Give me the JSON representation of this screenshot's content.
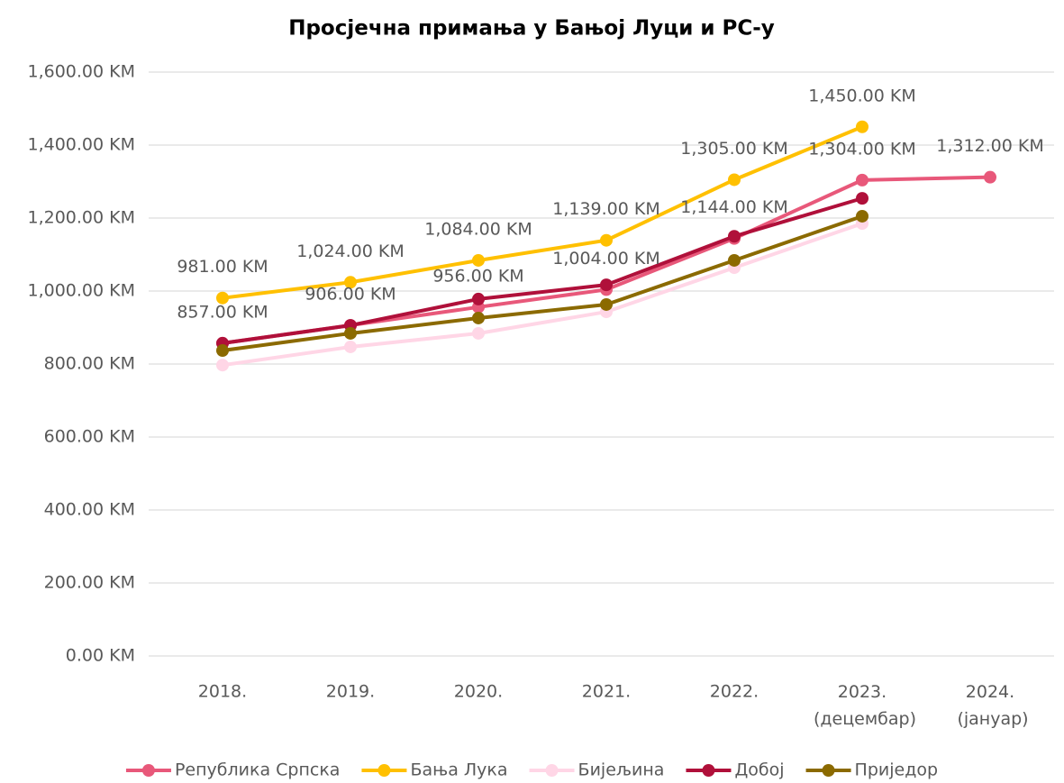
{
  "chart_data": {
    "type": "line",
    "title": "Просјечна примања у Бањој Луци и РС-у",
    "categories": [
      "2018.",
      "2019.",
      "2020.",
      "2021.",
      "2022.",
      "2023. (децембар)",
      "2024. (јануар)"
    ],
    "ylim": [
      0,
      1600
    ],
    "yticks": [
      {
        "value": 0,
        "label": "0.00 KM"
      },
      {
        "value": 200,
        "label": "200.00 KM"
      },
      {
        "value": 400,
        "label": "400.00 KM"
      },
      {
        "value": 600,
        "label": "600.00 KM"
      },
      {
        "value": 800,
        "label": "800.00 KM"
      },
      {
        "value": 1000,
        "label": "1,000.00 KM"
      },
      {
        "value": 1200,
        "label": "1,200.00 KM"
      },
      {
        "value": 1400,
        "label": "1,400.00 KM"
      },
      {
        "value": 1600,
        "label": "1,600.00 KM"
      }
    ],
    "grid": true,
    "legend": "bottom",
    "series": [
      {
        "name": "Република Српска",
        "color": "#e8587a",
        "values": [
          857,
          906,
          956,
          1004,
          1144,
          1304,
          1312
        ],
        "value_labels": [
          "857.00 KM",
          "906.00 KM",
          "956.00 KM",
          "1,004.00 KM",
          "1,144.00 KM",
          "1,304.00 KM",
          "1,312.00 KM"
        ]
      },
      {
        "name": "Бања Лука",
        "color": "#ffc000",
        "values": [
          981,
          1024,
          1084,
          1139,
          1305,
          1450,
          null
        ],
        "value_labels": [
          "981.00 KM",
          "1,024.00 KM",
          "1,084.00 KM",
          "1,139.00 KM",
          "1,305.00 KM",
          "1,450.00 KM",
          null
        ]
      },
      {
        "name": "Бијељина",
        "color": "#ffd6e6",
        "values": [
          797,
          847,
          884,
          943,
          1064,
          1185,
          null
        ]
      },
      {
        "name": "Добој",
        "color": "#b0103a",
        "values": [
          857,
          906,
          978,
          1017,
          1150,
          1254,
          null
        ]
      },
      {
        "name": "Пријeдор",
        "color": "#8b6a00",
        "values": [
          837,
          884,
          926,
          963,
          1084,
          1205,
          null
        ]
      }
    ]
  }
}
